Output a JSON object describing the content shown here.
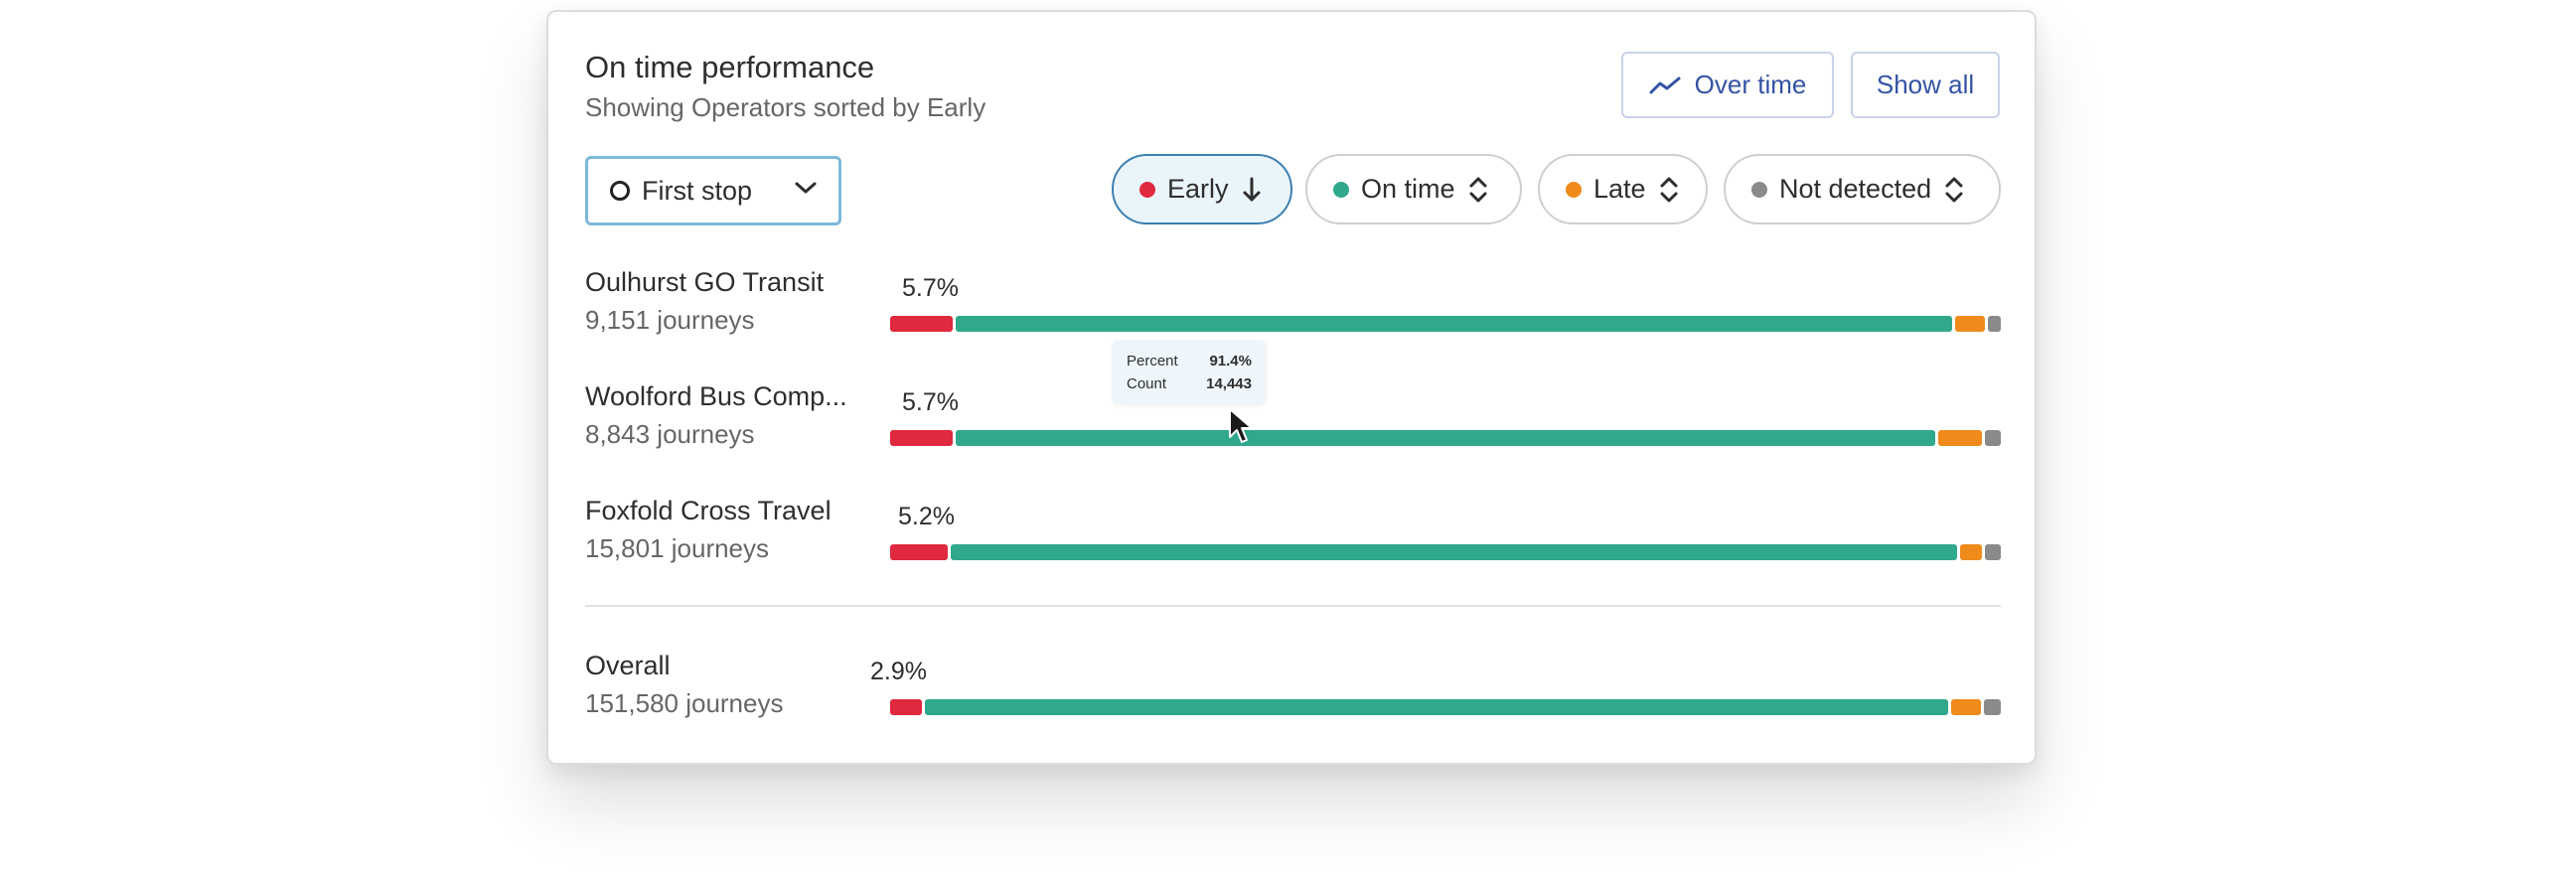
{
  "header": {
    "title": "On time performance",
    "subtitle": "Showing Operators sorted by Early",
    "over_time_label": "Over time",
    "show_all_label": "Show all"
  },
  "stop_select": {
    "value": "First stop"
  },
  "filters": [
    {
      "label": "Early",
      "color": "#e0283f",
      "sort": "desc",
      "active": true
    },
    {
      "label": "On time",
      "color": "#2fa88c",
      "sort": "none",
      "active": false
    },
    {
      "label": "Late",
      "color": "#ef8a1b",
      "sort": "none",
      "active": false
    },
    {
      "label": "Not detected",
      "color": "#8a8a8a",
      "sort": "none",
      "active": false
    }
  ],
  "rows": [
    {
      "name": "Oulhurst GO Transit",
      "journeys": "9,151 journeys",
      "early_label": "5.7%",
      "early": 5.7,
      "ontime": 90.4,
      "late": 2.7,
      "not_detected": 1.2
    },
    {
      "name": "Woolford Bus Comp...",
      "journeys": "8,843 journeys",
      "early_label": "5.7%",
      "early": 5.7,
      "ontime": 88.9,
      "late": 4.0,
      "not_detected": 1.4
    },
    {
      "name": "Foxfold Cross Travel",
      "journeys": "15,801 journeys",
      "early_label": "5.2%",
      "early": 5.2,
      "ontime": 91.4,
      "late": 2.0,
      "not_detected": 1.4
    }
  ],
  "overall": {
    "name": "Overall",
    "journeys": "151,580 journeys",
    "early_label": "2.9%",
    "early": 2.9,
    "ontime": 92.9,
    "late": 2.7,
    "not_detected": 1.5
  },
  "tooltip": {
    "percent_label": "Percent",
    "percent_value": "91.4%",
    "count_label": "Count",
    "count_value": "14,443"
  },
  "colors": {
    "early": "#e0283f",
    "ontime": "#2fa88c",
    "late": "#ef8a1b",
    "not_detected": "#8a8a8a",
    "accent": "#3353a3"
  }
}
